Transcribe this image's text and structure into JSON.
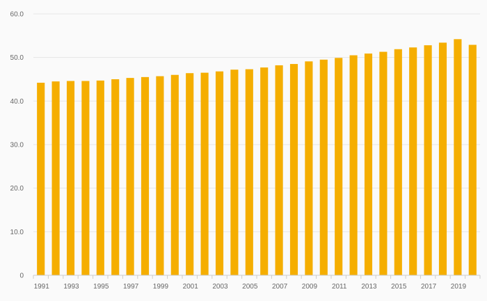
{
  "chart_data": {
    "type": "bar",
    "title": "",
    "xlabel": "",
    "ylabel": "",
    "ylim": [
      0,
      60
    ],
    "y_ticks": [
      "0",
      "10.0",
      "20.0",
      "30.0",
      "40.0",
      "50.0",
      "60.0"
    ],
    "x_tick_labels": [
      "1991",
      "1993",
      "1995",
      "1997",
      "1999",
      "2001",
      "2003",
      "2005",
      "2007",
      "2009",
      "2011",
      "2013",
      "2015",
      "2017",
      "2019"
    ],
    "categories": [
      "1991",
      "1992",
      "1993",
      "1994",
      "1995",
      "1996",
      "1997",
      "1998",
      "1999",
      "2000",
      "2001",
      "2002",
      "2003",
      "2004",
      "2005",
      "2006",
      "2007",
      "2008",
      "2009",
      "2010",
      "2011",
      "2012",
      "2013",
      "2014",
      "2015",
      "2016",
      "2017",
      "2018",
      "2019",
      "2020"
    ],
    "values": [
      44.2,
      44.5,
      44.6,
      44.6,
      44.7,
      45.0,
      45.3,
      45.5,
      45.7,
      46.0,
      46.4,
      46.5,
      46.8,
      47.2,
      47.3,
      47.7,
      48.2,
      48.5,
      49.1,
      49.5,
      49.9,
      50.5,
      50.9,
      51.3,
      51.9,
      52.3,
      52.8,
      53.4,
      54.2,
      52.9
    ],
    "grid": true,
    "legend": "none",
    "bar_color": "#f5ae00"
  }
}
